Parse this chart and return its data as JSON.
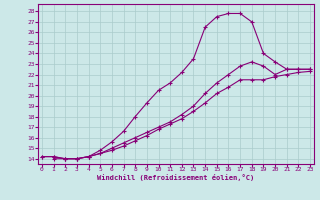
{
  "xlabel": "Windchill (Refroidissement éolien,°C)",
  "bg_color": "#cce8e8",
  "grid_color": "#aacccc",
  "line_color": "#880077",
  "x_ticks": [
    0,
    1,
    2,
    3,
    4,
    5,
    6,
    7,
    8,
    9,
    10,
    11,
    12,
    13,
    14,
    15,
    16,
    17,
    18,
    19,
    20,
    21,
    22,
    23
  ],
  "y_ticks": [
    14,
    15,
    16,
    17,
    18,
    19,
    20,
    21,
    22,
    23,
    24,
    25,
    26,
    27,
    28
  ],
  "xlim": [
    -0.3,
    23.3
  ],
  "ylim": [
    13.5,
    28.7
  ],
  "curve1_x": [
    0,
    1,
    2,
    3,
    4,
    5,
    6,
    7,
    8,
    9,
    10,
    11,
    12,
    13,
    14,
    15,
    16,
    17,
    18,
    19,
    20,
    21,
    22,
    23
  ],
  "curve1_y": [
    14.2,
    14.2,
    14.0,
    14.0,
    14.2,
    14.8,
    15.6,
    16.6,
    18.0,
    19.3,
    20.5,
    21.2,
    22.2,
    23.5,
    26.5,
    27.5,
    27.8,
    27.8,
    27.0,
    24.0,
    23.2,
    22.5,
    22.5,
    22.5
  ],
  "curve2_x": [
    1,
    2,
    3,
    4,
    5,
    6,
    7,
    8,
    9,
    10,
    11,
    12,
    13,
    14,
    15,
    16,
    17,
    18,
    19,
    20,
    21,
    22,
    23
  ],
  "curve2_y": [
    14.0,
    14.0,
    14.0,
    14.2,
    14.5,
    15.0,
    15.5,
    16.0,
    16.5,
    17.0,
    17.5,
    18.2,
    19.0,
    20.2,
    21.2,
    22.0,
    22.8,
    23.2,
    22.8,
    22.0,
    22.5,
    22.5,
    22.5
  ],
  "curve3_x": [
    0,
    1,
    2,
    3,
    4,
    5,
    6,
    7,
    8,
    9,
    10,
    11,
    12,
    13,
    14,
    15,
    16,
    17,
    18,
    19,
    20,
    21,
    22,
    23
  ],
  "curve3_y": [
    14.2,
    14.2,
    14.0,
    14.0,
    14.2,
    14.5,
    14.8,
    15.2,
    15.7,
    16.2,
    16.8,
    17.3,
    17.8,
    18.5,
    19.3,
    20.2,
    20.8,
    21.5,
    21.5,
    21.5,
    21.8,
    22.0,
    22.2,
    22.3
  ]
}
